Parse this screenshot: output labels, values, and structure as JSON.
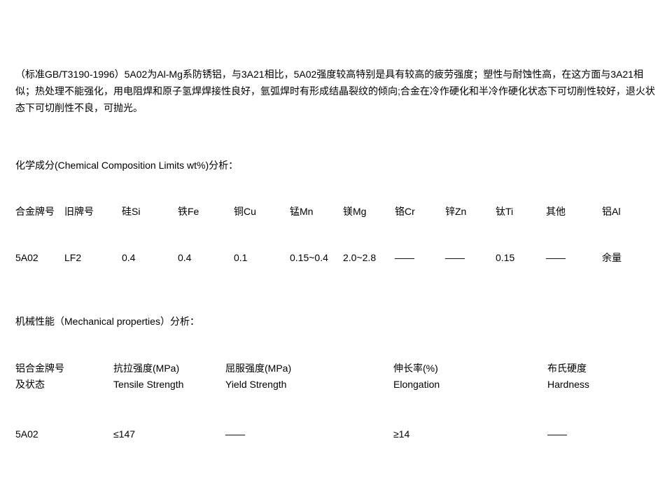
{
  "intro": "（标准GB/T3190-1996）5A02为Al-Mg系防锈铝，与3A21相比，5A02强度较高特别是具有较高的疲劳强度；塑性与耐蚀性高，在这方面与3A21相似；热处理不能强化，用电阻焊和原子氢焊焊接性良好，氩弧焊时有形成结晶裂纹的倾向;合金在冷作硬化和半冷作硬化状态下可切削性较好，退火状态下可切削性不良，可抛光。",
  "chemical": {
    "title": "化学成分(Chemical Composition Limits wt%)分析：",
    "headers": {
      "alloy": "合金牌号",
      "old": "旧牌号",
      "si": "硅Si",
      "fe": "铁Fe",
      "cu": "铜Cu",
      "mn": "锰Mn",
      "mg": "镁Mg",
      "cr": "铬Cr",
      "zn": "锌Zn",
      "ti": "钛Ti",
      "other": "其他",
      "al": "铝Al"
    },
    "row": {
      "alloy": "5A02",
      "old": "LF2",
      "si": "0.4",
      "fe": "0.4",
      "cu": "0.1",
      "mn": "0.15~0.4",
      "mg": "2.0~2.8",
      "cr": "——",
      "zn": "——",
      "ti": "0.15",
      "other": "——",
      "al": "余量"
    }
  },
  "mechanical": {
    "title": "机械性能（Mechanical properties）分析：",
    "headers": {
      "alloy_l1": "铝合金牌号",
      "alloy_l2": "及状态",
      "tensile_l1": "抗拉强度(MPa)",
      "tensile_l2": "Tensile Strength",
      "yield_l1": "屈服强度(MPa)",
      "yield_l2": "Yield Strength",
      "elong_l1": "伸长率(%)",
      "elong_l2": "Elongation",
      "hard_l1": "布氏硬度",
      "hard_l2": "Hardness"
    },
    "row": {
      "alloy": "5A02",
      "tensile": "≤147",
      "yield": "——",
      "elong": "≥14",
      "hard": "——"
    }
  },
  "style": {
    "text_color": "#000000",
    "background_color": "#ffffff",
    "font_size_body": 14
  }
}
